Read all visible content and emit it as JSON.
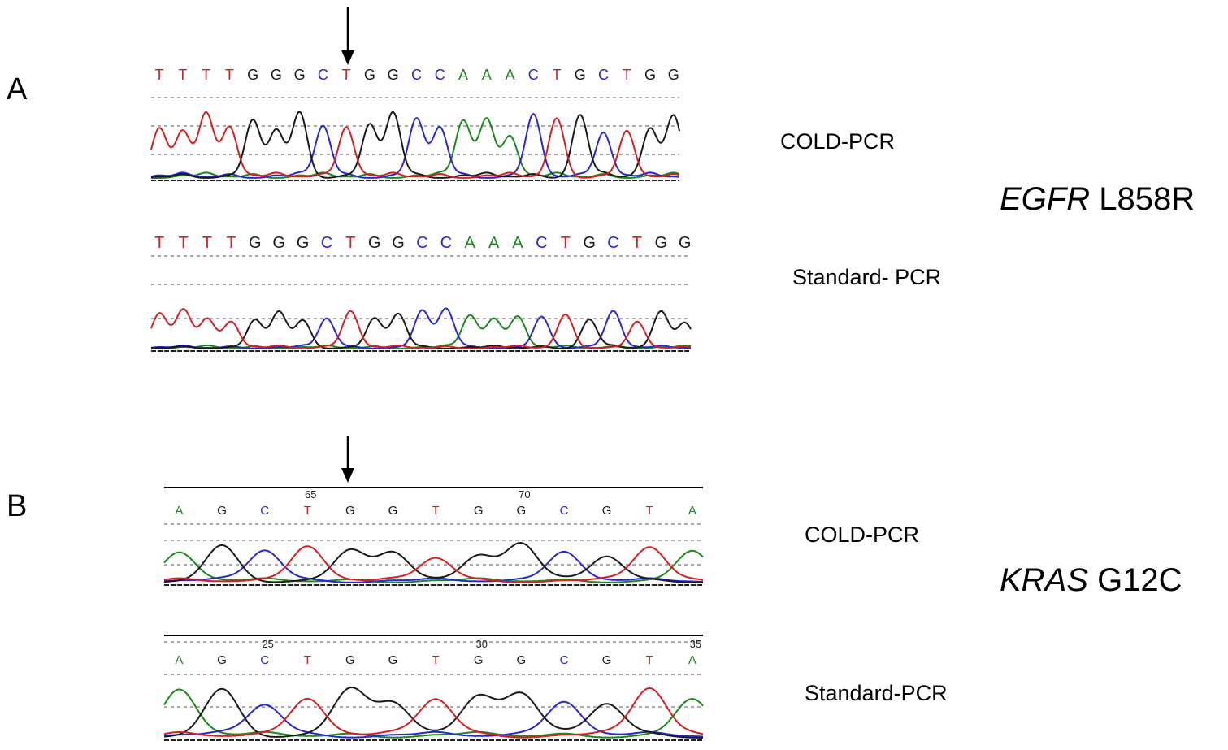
{
  "colors": {
    "A": "#1a8a1a",
    "C": "#2727d8",
    "G": "#1a1a1a",
    "T": "#d81e1e"
  },
  "panels": [
    {
      "label": "A",
      "gene": "EGFR",
      "mutation": "L858R",
      "tracks": [
        {
          "label": "COLD-PCR",
          "sequence": "TTTTGGGCTGGCCAAACTGCTGG",
          "positions": []
        },
        {
          "label": "Standard- PCR",
          "sequence": "TTTTGGGCTGGCCAAACTGCTGG",
          "positions": []
        }
      ]
    },
    {
      "label": "B",
      "gene": "KRAS",
      "mutation": "G12C",
      "tracks": [
        {
          "label": "COLD-PCR",
          "sequence": "AGCTGGTGGCGTA",
          "positions": [
            {
              "index": 3,
              "text": "65"
            },
            {
              "index": 8,
              "text": "70"
            }
          ]
        },
        {
          "label": "Standard-PCR",
          "sequence": "AGCTGGTGGCGTA",
          "positions": [
            {
              "index": 2,
              "text": "25"
            },
            {
              "index": 7,
              "text": "30"
            },
            {
              "index": 12,
              "text": "35"
            }
          ]
        }
      ]
    }
  ]
}
